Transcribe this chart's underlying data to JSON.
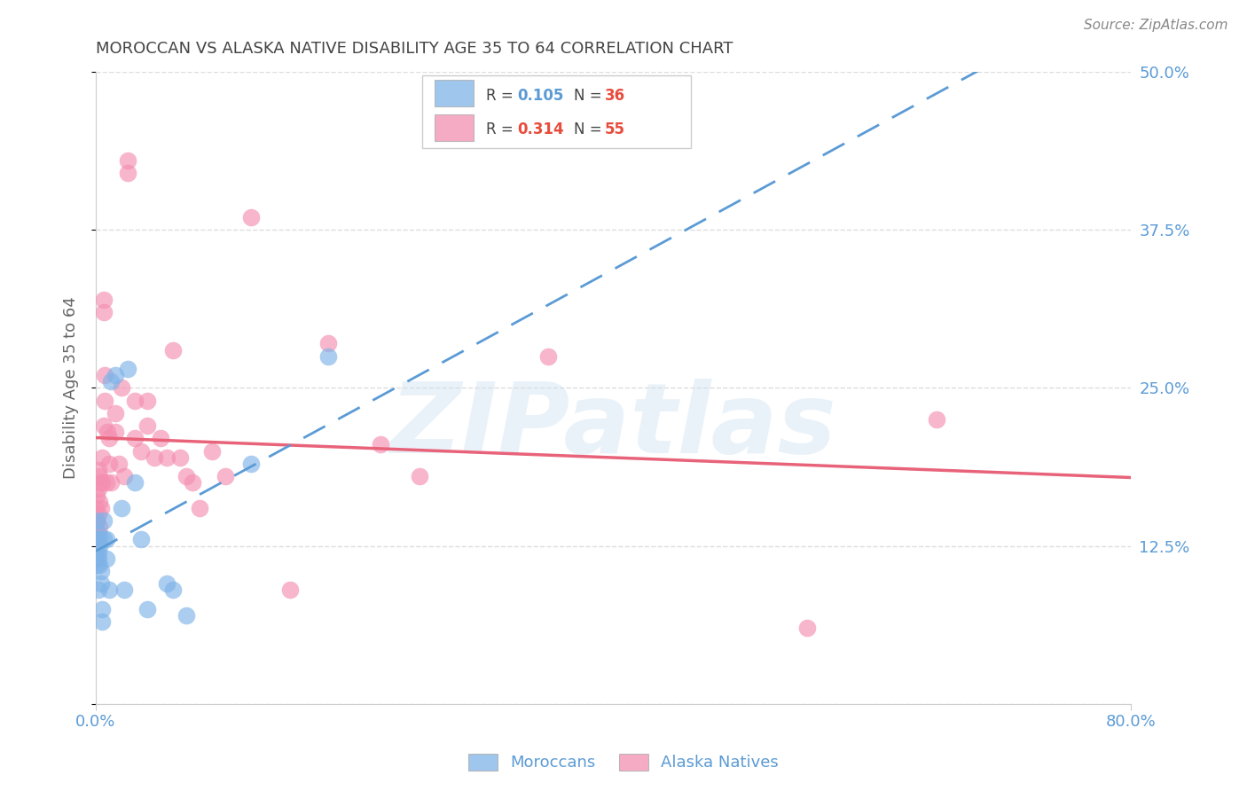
{
  "title": "MOROCCAN VS ALASKA NATIVE DISABILITY AGE 35 TO 64 CORRELATION CHART",
  "source": "Source: ZipAtlas.com",
  "ylabel": "Disability Age 35 to 64",
  "watermark": "ZIPatlas",
  "xlim": [
    0.0,
    0.8
  ],
  "ylim": [
    0.0,
    0.5
  ],
  "moroccan_color": "#7fb3e8",
  "alaska_color": "#f48fb1",
  "moroccan_line_color": "#5b9bd5",
  "alaska_line_color": "#e8637a",
  "moroccan_R": 0.105,
  "moroccan_N": 36,
  "alaska_R": 0.314,
  "alaska_N": 55,
  "moroccan_x": [
    0.0,
    0.0,
    0.0,
    0.001,
    0.001,
    0.001,
    0.001,
    0.002,
    0.002,
    0.002,
    0.002,
    0.003,
    0.003,
    0.003,
    0.004,
    0.004,
    0.005,
    0.005,
    0.006,
    0.006,
    0.008,
    0.008,
    0.01,
    0.012,
    0.015,
    0.02,
    0.022,
    0.025,
    0.03,
    0.035,
    0.04,
    0.055,
    0.06,
    0.07,
    0.12,
    0.18
  ],
  "moroccan_y": [
    0.13,
    0.12,
    0.115,
    0.145,
    0.13,
    0.125,
    0.11,
    0.135,
    0.12,
    0.115,
    0.09,
    0.13,
    0.125,
    0.11,
    0.105,
    0.095,
    0.075,
    0.065,
    0.145,
    0.13,
    0.13,
    0.115,
    0.09,
    0.255,
    0.26,
    0.155,
    0.09,
    0.265,
    0.175,
    0.13,
    0.075,
    0.095,
    0.09,
    0.07,
    0.19,
    0.275
  ],
  "alaska_x": [
    0.0,
    0.0,
    0.001,
    0.001,
    0.001,
    0.002,
    0.002,
    0.002,
    0.003,
    0.003,
    0.003,
    0.004,
    0.004,
    0.005,
    0.005,
    0.006,
    0.006,
    0.006,
    0.007,
    0.007,
    0.008,
    0.009,
    0.01,
    0.01,
    0.012,
    0.015,
    0.015,
    0.018,
    0.02,
    0.022,
    0.025,
    0.025,
    0.03,
    0.03,
    0.035,
    0.04,
    0.04,
    0.045,
    0.05,
    0.055,
    0.06,
    0.065,
    0.07,
    0.075,
    0.08,
    0.09,
    0.1,
    0.12,
    0.15,
    0.18,
    0.22,
    0.25,
    0.35,
    0.55,
    0.65
  ],
  "alaska_y": [
    0.155,
    0.145,
    0.165,
    0.145,
    0.135,
    0.185,
    0.17,
    0.15,
    0.18,
    0.16,
    0.14,
    0.175,
    0.155,
    0.195,
    0.175,
    0.32,
    0.31,
    0.22,
    0.26,
    0.24,
    0.175,
    0.215,
    0.21,
    0.19,
    0.175,
    0.23,
    0.215,
    0.19,
    0.25,
    0.18,
    0.43,
    0.42,
    0.24,
    0.21,
    0.2,
    0.24,
    0.22,
    0.195,
    0.21,
    0.195,
    0.28,
    0.195,
    0.18,
    0.175,
    0.155,
    0.2,
    0.18,
    0.385,
    0.09,
    0.285,
    0.205,
    0.18,
    0.275,
    0.06,
    0.225
  ],
  "background_color": "#ffffff",
  "grid_color": "#dddddd",
  "axis_color": "#cccccc",
  "tick_label_color": "#5b9bd5",
  "title_color": "#444444"
}
